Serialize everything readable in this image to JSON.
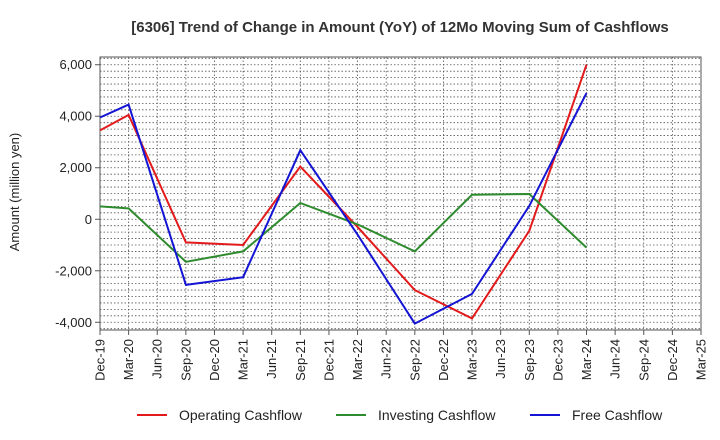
{
  "chart_data": {
    "type": "line",
    "title": "[6306]  Trend of Change in Amount (YoY) of 12Mo Moving Sum of Cashflows",
    "xlabel": "",
    "ylabel": "Amount (million yen)",
    "ylim": [
      -4300,
      6300
    ],
    "yticks": [
      -4000,
      -2000,
      0,
      2000,
      4000,
      6000
    ],
    "ytick_labels": [
      "-4,000",
      "-2,000",
      "0",
      "2,000",
      "4,000",
      "6,000"
    ],
    "categories": [
      "Dec-19",
      "Mar-20",
      "Jun-20",
      "Sep-20",
      "Dec-20",
      "Mar-21",
      "Jun-21",
      "Sep-21",
      "Dec-21",
      "Mar-22",
      "Jun-22",
      "Sep-22",
      "Dec-22",
      "Mar-23",
      "Jun-23",
      "Sep-23",
      "Dec-23",
      "Mar-24",
      "Jun-24",
      "Sep-24",
      "Dec-24",
      "Mar-25"
    ],
    "grid": true,
    "legend_position": "bottom",
    "series": [
      {
        "name": "Operating Cashflow",
        "color": "#e31a1c",
        "values": [
          3450,
          4050,
          null,
          -900,
          null,
          -1000,
          null,
          2050,
          null,
          -300,
          null,
          -2750,
          null,
          -3850,
          null,
          -450,
          null,
          6000,
          null,
          null,
          null,
          null
        ]
      },
      {
        "name": "Investing Cashflow",
        "color": "#2e8b2e",
        "values": [
          500,
          420,
          null,
          -1650,
          null,
          -1250,
          null,
          630,
          null,
          -200,
          null,
          -1250,
          null,
          950,
          null,
          980,
          null,
          -1100,
          null,
          null,
          null,
          null
        ]
      },
      {
        "name": "Free Cashflow",
        "color": "#1414d4",
        "values": [
          3950,
          4450,
          null,
          -2550,
          null,
          -2250,
          null,
          2680,
          null,
          -600,
          null,
          -4050,
          null,
          -2900,
          null,
          520,
          null,
          4900,
          null,
          null,
          null,
          null
        ]
      }
    ]
  }
}
